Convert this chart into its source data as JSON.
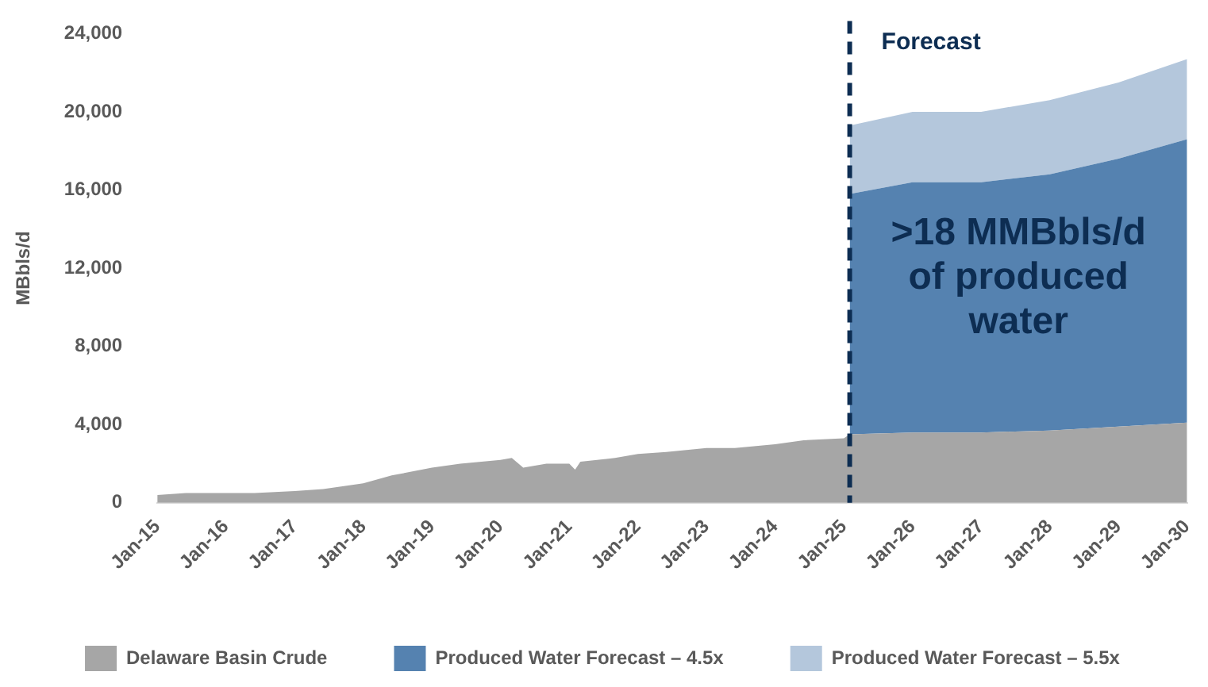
{
  "chart_data": {
    "type": "area",
    "stacked": true,
    "ylabel": "MBbls/d",
    "xlim": [
      "2015-01",
      "2030-01"
    ],
    "xticks": [
      {
        "value": "2015-01",
        "label": "Jan-15"
      },
      {
        "value": "2016-01",
        "label": "Jan-16"
      },
      {
        "value": "2017-01",
        "label": "Jan-17"
      },
      {
        "value": "2018-01",
        "label": "Jan-18"
      },
      {
        "value": "2019-01",
        "label": "Jan-19"
      },
      {
        "value": "2020-01",
        "label": "Jan-20"
      },
      {
        "value": "2021-01",
        "label": "Jan-21"
      },
      {
        "value": "2022-01",
        "label": "Jan-22"
      },
      {
        "value": "2023-01",
        "label": "Jan-23"
      },
      {
        "value": "2024-01",
        "label": "Jan-24"
      },
      {
        "value": "2025-01",
        "label": "Jan-25"
      },
      {
        "value": "2026-01",
        "label": "Jan-26"
      },
      {
        "value": "2027-01",
        "label": "Jan-27"
      },
      {
        "value": "2028-01",
        "label": "Jan-28"
      },
      {
        "value": "2029-01",
        "label": "Jan-29"
      },
      {
        "value": "2030-01",
        "label": "Jan-30"
      }
    ],
    "ylim": [
      0,
      24000
    ],
    "yticks": [
      {
        "value": 0,
        "label": "0"
      },
      {
        "value": 4000,
        "label": "4,000"
      },
      {
        "value": 8000,
        "label": "8,000"
      },
      {
        "value": 12000,
        "label": "12,000"
      },
      {
        "value": 16000,
        "label": "16,000"
      },
      {
        "value": 20000,
        "label": "20,000"
      },
      {
        "value": 24000,
        "label": "24,000"
      }
    ],
    "grid": false,
    "legend": "bottom",
    "x": [
      "2015-01",
      "2015-06",
      "2016-01",
      "2016-06",
      "2017-01",
      "2017-06",
      "2018-01",
      "2018-06",
      "2019-01",
      "2019-06",
      "2020-01",
      "2020-03",
      "2020-05",
      "2020-09",
      "2021-01",
      "2021-02",
      "2021-03",
      "2021-09",
      "2022-01",
      "2022-06",
      "2023-01",
      "2023-06",
      "2024-01",
      "2024-06",
      "2025-01",
      "2025-02",
      "2026-01",
      "2027-01",
      "2028-01",
      "2029-01",
      "2030-01"
    ],
    "series": [
      {
        "name": "Delaware Basin Crude",
        "color": "#a6a6a6",
        "values": [
          400,
          500,
          500,
          500,
          600,
          700,
          1000,
          1400,
          1800,
          2000,
          2200,
          2300,
          1800,
          2000,
          2000,
          1700,
          2100,
          2300,
          2500,
          2600,
          2800,
          2800,
          3000,
          3200,
          3300,
          3500,
          3600,
          3600,
          3700,
          3900,
          4100
        ]
      },
      {
        "name": "Produced Water Forecast – 4.5x",
        "color": "#5582b0",
        "values": [
          null,
          null,
          null,
          null,
          null,
          null,
          null,
          null,
          null,
          null,
          null,
          null,
          null,
          null,
          null,
          null,
          null,
          null,
          null,
          null,
          null,
          null,
          null,
          null,
          null,
          12300,
          12800,
          12800,
          13100,
          13700,
          14500
        ]
      },
      {
        "name": "Produced Water Forecast – 5.5x",
        "color": "#b4c7dc",
        "values": [
          null,
          null,
          null,
          null,
          null,
          null,
          null,
          null,
          null,
          null,
          null,
          null,
          null,
          null,
          null,
          null,
          null,
          null,
          null,
          null,
          null,
          null,
          null,
          null,
          null,
          3500,
          3600,
          3600,
          3800,
          3900,
          4100
        ]
      }
    ],
    "ref_lines": [
      {
        "axis": "x",
        "value": "2025-02",
        "label": "Forecast",
        "color": "#0d2d52",
        "line_style": "dashed"
      }
    ],
    "annotations": [
      ">18 MMBbls/d of produced water"
    ]
  }
}
